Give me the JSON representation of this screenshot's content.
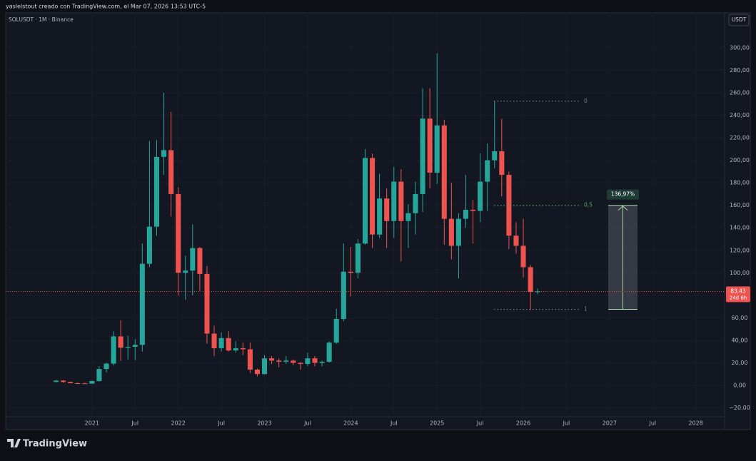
{
  "header": "yaslelstout creado con TradingView.com, el Mar 07, 2026 13:53 UTC-5",
  "brand": "TradingView",
  "chart_data": {
    "type": "candlestick",
    "title": "SOLUSDT · 1M · Binance",
    "currency": "USDT",
    "up_color": "#26a69a",
    "down_color": "#ef5350",
    "grid": true,
    "x": [
      "2020-08",
      "2020-09",
      "2020-10",
      "2020-11",
      "2020-12",
      "2021-01",
      "2021-02",
      "2021-03",
      "2021-04",
      "2021-05",
      "2021-06",
      "2021-07",
      "2021-08",
      "2021-09",
      "2021-10",
      "2021-11",
      "2021-12",
      "2022-01",
      "2022-02",
      "2022-03",
      "2022-04",
      "2022-05",
      "2022-06",
      "2022-07",
      "2022-08",
      "2022-09",
      "2022-10",
      "2022-11",
      "2022-12",
      "2023-01",
      "2023-02",
      "2023-03",
      "2023-04",
      "2023-05",
      "2023-06",
      "2023-07",
      "2023-08",
      "2023-09",
      "2023-10",
      "2023-11",
      "2023-12",
      "2024-01",
      "2024-02",
      "2024-03",
      "2024-04",
      "2024-05",
      "2024-06",
      "2024-07",
      "2024-08",
      "2024-09",
      "2024-10",
      "2024-11",
      "2024-12",
      "2025-01",
      "2025-02",
      "2025-03",
      "2025-04",
      "2025-05",
      "2025-06",
      "2025-07",
      "2025-08",
      "2025-09",
      "2025-10",
      "2025-11",
      "2025-12",
      "2026-01",
      "2026-02",
      "2026-03"
    ],
    "open": [
      3.0,
      4.2,
      3.0,
      1.9,
      1.8,
      1.5,
      3.8,
      14.5,
      19.3,
      43.5,
      33.5,
      34.3,
      36,
      108,
      141,
      203,
      209,
      170,
      100,
      102,
      122,
      99,
      46,
      33,
      42,
      31,
      33,
      32,
      14,
      10,
      24,
      22,
      21,
      22,
      20,
      19,
      24,
      20,
      21,
      38,
      59,
      101,
      100,
      126,
      202,
      134,
      166,
      146,
      181,
      146,
      153,
      170,
      237,
      189,
      231,
      148,
      124,
      148,
      156,
      155,
      181,
      200,
      208,
      187,
      133,
      124,
      105,
      83
    ],
    "high": [
      4.9,
      4.6,
      3.2,
      2.6,
      2.4,
      4.2,
      17.0,
      20,
      48,
      58,
      44,
      41,
      126,
      217,
      218,
      260,
      243,
      176,
      115,
      143,
      123,
      106,
      53,
      47,
      48,
      39,
      38,
      38,
      15,
      27,
      26,
      24,
      26,
      23,
      20.5,
      29,
      26,
      22,
      39,
      68,
      126,
      123,
      130,
      210,
      206,
      188,
      175,
      194,
      192,
      161,
      181,
      264,
      264,
      295,
      236,
      180,
      153,
      187,
      165,
      206,
      215,
      253,
      237,
      190,
      145,
      148,
      107,
      86
    ],
    "low": [
      2.6,
      2.3,
      1.8,
      1.6,
      1.4,
      1.4,
      3.3,
      11.5,
      17.6,
      21.9,
      22.9,
      22.5,
      30,
      105,
      133,
      187,
      150,
      80,
      76,
      80,
      84,
      37,
      26,
      30,
      30,
      29,
      27,
      11,
      8,
      9.6,
      19,
      16,
      19,
      18,
      14,
      17,
      17,
      17,
      20,
      37,
      57,
      79,
      95,
      125,
      122,
      131,
      122,
      131,
      110,
      122,
      134,
      154,
      175,
      179,
      125,
      112,
      95,
      140,
      126,
      145,
      155,
      193,
      168,
      121,
      117,
      96,
      67,
      81
    ],
    "close": [
      4.2,
      3.0,
      1.9,
      1.8,
      1.5,
      3.8,
      14.5,
      19.3,
      43.5,
      33.5,
      34.3,
      36,
      108,
      141,
      203,
      209,
      170,
      100,
      102,
      122,
      99,
      46,
      33,
      42,
      31,
      33,
      32,
      14,
      10,
      24,
      22,
      21,
      22,
      20,
      19,
      24,
      20,
      21,
      38,
      59,
      101,
      100,
      126,
      202,
      134,
      166,
      146,
      181,
      146,
      153,
      170,
      237,
      189,
      231,
      148,
      124,
      148,
      156,
      155,
      181,
      200,
      208,
      187,
      133,
      124,
      105,
      83,
      83.43
    ],
    "xlim": [
      "2020-01",
      "2028-05"
    ],
    "xticks": [
      {
        "value": "2021-01",
        "label": "2021"
      },
      {
        "value": "2021-07",
        "label": "Jul"
      },
      {
        "value": "2022-01",
        "label": "2022"
      },
      {
        "value": "2022-07",
        "label": "Jul"
      },
      {
        "value": "2023-01",
        "label": "2023"
      },
      {
        "value": "2023-07",
        "label": "Jul"
      },
      {
        "value": "2024-01",
        "label": "2024"
      },
      {
        "value": "2024-07",
        "label": "Jul"
      },
      {
        "value": "2025-01",
        "label": "2025"
      },
      {
        "value": "2025-07",
        "label": "Jul"
      },
      {
        "value": "2026-01",
        "label": "2026"
      },
      {
        "value": "2026-07",
        "label": "Jul"
      },
      {
        "value": "2027-01",
        "label": "2027"
      },
      {
        "value": "2027-07",
        "label": "Jul"
      },
      {
        "value": "2028-01",
        "label": "2028"
      }
    ],
    "ylim": [
      -27.9,
      331
    ],
    "yticks": [
      {
        "value": -20,
        "label": "−20,00"
      },
      {
        "value": 0,
        "label": "0,00"
      },
      {
        "value": 20,
        "label": "20,00"
      },
      {
        "value": 40,
        "label": "40,00"
      },
      {
        "value": 60,
        "label": "60,00"
      },
      {
        "value": 80,
        "label": "80,00"
      },
      {
        "value": 100,
        "label": "100,00"
      },
      {
        "value": 120,
        "label": "120,00"
      },
      {
        "value": 140,
        "label": "140,00"
      },
      {
        "value": 160,
        "label": "160,00"
      },
      {
        "value": 180,
        "label": "180,00"
      },
      {
        "value": 200,
        "label": "200,00"
      },
      {
        "value": 220,
        "label": "220,00"
      },
      {
        "value": 240,
        "label": "240,00"
      },
      {
        "value": 260,
        "label": "260,00"
      },
      {
        "value": 280,
        "label": "280,00"
      },
      {
        "value": 300,
        "label": "300,00"
      }
    ],
    "levels": [
      {
        "label": "0",
        "value": 252.5,
        "color": "#787b86"
      },
      {
        "label": "0,5",
        "value": 160,
        "color": "#4caf50"
      },
      {
        "label": "1",
        "value": 67.5,
        "color": "#787b86"
      }
    ],
    "measure": {
      "from": 67.5,
      "to": 160,
      "label": "136,97%"
    },
    "last_price": {
      "value": 83.43,
      "label": "83,43",
      "countdown": "24d 6h"
    }
  }
}
